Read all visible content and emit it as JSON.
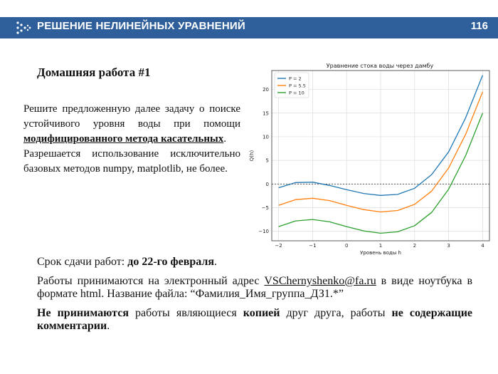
{
  "header": {
    "title": "РЕШЕНИЕ НЕЛИНЕЙНЫХ УРАВНЕНИЙ",
    "page_number": "116",
    "colors": {
      "bar": "#2f5f9a",
      "text": "#ffffff"
    },
    "logo_icon": "dots-arrow-icon"
  },
  "homework": {
    "title": "Домашняя работа #1",
    "task_text_1": "Решите предложенную далее задачу о поиске устойчивого уровня воды при помощи ",
    "task_method": "модифицированного метода касательных",
    "task_text_2": ".",
    "allowed_text": "Разрешается использование исключительно базовых методов numpy, matplotlib, не более."
  },
  "deadline": {
    "prefix": "Срок сдачи работ: ",
    "date": "до 22-го февраля",
    "suffix": "."
  },
  "submission": {
    "prefix": "Работы принимаются на электронный адрес ",
    "email": "VSChernyshenko@fa.ru",
    "suffix": " в виде ноутбука в формате html. Название файла: “Фамилия_Имя_группа_ДЗ1.*”"
  },
  "rules": {
    "part1": "Не принимаются",
    "part2": " работы являющиеся ",
    "part3": "копией",
    "part4": " друг друга, работы ",
    "part5": "не содержащие комментарии",
    "part6": "."
  },
  "chart_data": {
    "type": "line",
    "title": "Уравнение стока воды через дамбу",
    "xlabel": "Уровень воды h",
    "ylabel": "Q(h)",
    "xlim": [
      -2.2,
      4.2
    ],
    "ylim": [
      -12,
      24
    ],
    "xticks": [
      -2,
      -1,
      0,
      1,
      2,
      3,
      4
    ],
    "yticks": [
      -10,
      -5,
      0,
      5,
      10,
      15,
      20
    ],
    "grid": true,
    "legend": "top-left",
    "zero_line": true,
    "series": [
      {
        "name": "P = 2",
        "color": "#1f77b4",
        "x": [
          -2,
          -1.5,
          -1,
          -0.5,
          0,
          0.5,
          1,
          1.5,
          2,
          2.5,
          3,
          3.5,
          4
        ],
        "y": [
          -0.8,
          0.3,
          0.4,
          -0.3,
          -1.2,
          -2.0,
          -2.4,
          -2.2,
          -0.9,
          2.0,
          6.8,
          14.0,
          23.0
        ]
      },
      {
        "name": "P = 5.5",
        "color": "#ff7f0e",
        "x": [
          -2,
          -1.5,
          -1,
          -0.5,
          0,
          0.5,
          1,
          1.5,
          2,
          2.5,
          3,
          3.5,
          4
        ],
        "y": [
          -4.5,
          -3.3,
          -3.0,
          -3.5,
          -4.5,
          -5.4,
          -5.9,
          -5.6,
          -4.3,
          -1.5,
          3.4,
          10.5,
          19.5
        ]
      },
      {
        "name": "P = 10",
        "color": "#2ca02c",
        "x": [
          -2,
          -1.5,
          -1,
          -0.5,
          0,
          0.5,
          1,
          1.5,
          2,
          2.5,
          3,
          3.5,
          4
        ],
        "y": [
          -9.0,
          -7.8,
          -7.5,
          -8.0,
          -9.0,
          -9.9,
          -10.4,
          -10.1,
          -8.8,
          -6.0,
          -1.1,
          6.0,
          15.0
        ]
      }
    ]
  }
}
